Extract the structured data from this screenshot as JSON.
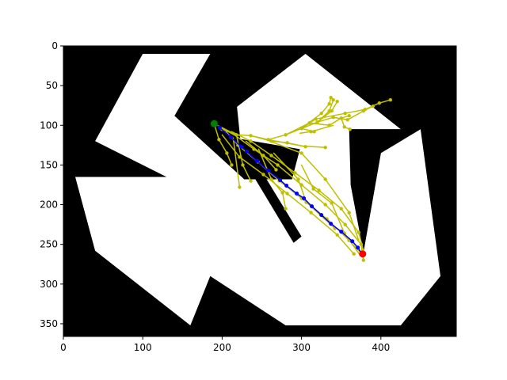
{
  "chart_data": {
    "type": "image_with_paths",
    "title": "",
    "xlabel": "",
    "ylabel": "",
    "xlim": [
      0,
      495
    ],
    "ylim": [
      366,
      0
    ],
    "y_inverted": true,
    "x_ticks": [
      0,
      100,
      200,
      300,
      400
    ],
    "y_ticks": [
      0,
      50,
      100,
      150,
      200,
      250,
      300,
      350
    ],
    "grid": false,
    "legend": "none",
    "colors": {
      "obstacle": "#000000",
      "free_space": "#ffffff",
      "tree": "#bfbf00",
      "path": "#0000ff",
      "start": "#008000",
      "goal": "#ff0000"
    },
    "free_space_polygons": [
      [
        [
          100,
          10
        ],
        [
          185,
          10
        ],
        [
          140,
          88
        ],
        [
          228,
          168
        ],
        [
          288,
          168
        ],
        [
          298,
          130
        ],
        [
          210,
          115
        ],
        [
          195,
          95
        ],
        [
          305,
          10
        ],
        [
          425,
          105
        ],
        [
          362,
          105
        ],
        [
          362,
          175
        ],
        [
          378,
          260
        ],
        [
          400,
          135
        ],
        [
          450,
          105
        ],
        [
          475,
          290
        ],
        [
          425,
          352
        ],
        [
          280,
          352
        ],
        [
          185,
          290
        ],
        [
          160,
          352
        ],
        [
          40,
          258
        ],
        [
          15,
          165
        ],
        [
          130,
          165
        ],
        [
          40,
          120
        ]
      ]
    ],
    "obstacle_polygons": [
      [
        [
          140,
          88
        ],
        [
          215,
          40
        ],
        [
          228,
          168
        ]
      ],
      [
        [
          360,
          105
        ],
        [
          425,
          105
        ],
        [
          400,
          135
        ],
        [
          378,
          260
        ],
        [
          362,
          175
        ]
      ],
      [
        [
          210,
          100
        ],
        [
          245,
          150
        ],
        [
          300,
          240
        ],
        [
          290,
          248
        ],
        [
          225,
          140
        ]
      ]
    ],
    "tree_segments": [
      [
        [
          190,
          98
        ],
        [
          215,
          112
        ]
      ],
      [
        [
          190,
          98
        ],
        [
          196,
          118
        ]
      ],
      [
        [
          196,
          118
        ],
        [
          206,
          135
        ]
      ],
      [
        [
          206,
          135
        ],
        [
          212,
          150
        ]
      ],
      [
        [
          190,
          98
        ],
        [
          200,
          105
        ]
      ],
      [
        [
          200,
          105
        ],
        [
          218,
          112
        ]
      ],
      [
        [
          218,
          112
        ],
        [
          236,
          113
        ]
      ],
      [
        [
          236,
          113
        ],
        [
          258,
          118
        ]
      ],
      [
        [
          196,
          101
        ],
        [
          210,
          108
        ]
      ],
      [
        [
          210,
          108
        ],
        [
          240,
          130
        ]
      ],
      [
        [
          240,
          130
        ],
        [
          270,
          150
        ]
      ],
      [
        [
          270,
          150
        ],
        [
          300,
          175
        ]
      ],
      [
        [
          300,
          175
        ],
        [
          330,
          200
        ]
      ],
      [
        [
          330,
          200
        ],
        [
          355,
          225
        ]
      ],
      [
        [
          355,
          225
        ],
        [
          375,
          250
        ]
      ],
      [
        [
          375,
          250
        ],
        [
          378,
          270
        ]
      ],
      [
        [
          205,
          108
        ],
        [
          220,
          125
        ]
      ],
      [
        [
          220,
          125
        ],
        [
          245,
          146
        ]
      ],
      [
        [
          245,
          146
        ],
        [
          272,
          170
        ]
      ],
      [
        [
          272,
          170
        ],
        [
          300,
          192
        ]
      ],
      [
        [
          300,
          192
        ],
        [
          332,
          218
        ]
      ],
      [
        [
          332,
          218
        ],
        [
          360,
          245
        ]
      ],
      [
        [
          360,
          245
        ],
        [
          376,
          262
        ]
      ],
      [
        [
          212,
          108
        ],
        [
          236,
          120
        ]
      ],
      [
        [
          236,
          120
        ],
        [
          262,
          138
        ]
      ],
      [
        [
          262,
          138
        ],
        [
          292,
          160
        ]
      ],
      [
        [
          292,
          160
        ],
        [
          322,
          182
        ]
      ],
      [
        [
          322,
          182
        ],
        [
          350,
          205
        ]
      ],
      [
        [
          350,
          205
        ],
        [
          372,
          235
        ]
      ],
      [
        [
          372,
          235
        ],
        [
          378,
          258
        ]
      ],
      [
        [
          200,
          112
        ],
        [
          222,
          140
        ]
      ],
      [
        [
          222,
          140
        ],
        [
          252,
          162
        ]
      ],
      [
        [
          252,
          162
        ],
        [
          282,
          186
        ]
      ],
      [
        [
          282,
          186
        ],
        [
          312,
          210
        ]
      ],
      [
        [
          312,
          210
        ],
        [
          345,
          238
        ]
      ],
      [
        [
          345,
          238
        ],
        [
          366,
          262
        ]
      ],
      [
        [
          218,
          112
        ],
        [
          226,
          150
        ]
      ],
      [
        [
          226,
          150
        ],
        [
          236,
          170
        ]
      ],
      [
        [
          214,
          116
        ],
        [
          222,
          178
        ]
      ],
      [
        [
          246,
          130
        ],
        [
          262,
          168
        ]
      ],
      [
        [
          262,
          168
        ],
        [
          276,
          185
        ]
      ],
      [
        [
          276,
          185
        ],
        [
          280,
          205
        ]
      ],
      [
        [
          260,
          120
        ],
        [
          300,
          135
        ]
      ],
      [
        [
          300,
          135
        ],
        [
          330,
          168
        ]
      ],
      [
        [
          330,
          168
        ],
        [
          360,
          210
        ]
      ],
      [
        [
          360,
          210
        ],
        [
          372,
          245
        ]
      ],
      [
        [
          265,
          135
        ],
        [
          296,
          168
        ]
      ],
      [
        [
          296,
          168
        ],
        [
          306,
          197
        ]
      ],
      [
        [
          306,
          197
        ],
        [
          342,
          230
        ]
      ],
      [
        [
          230,
          120
        ],
        [
          252,
          138
        ]
      ],
      [
        [
          252,
          138
        ],
        [
          268,
          156
        ]
      ],
      [
        [
          300,
          150
        ],
        [
          315,
          180
        ]
      ],
      [
        [
          315,
          180
        ],
        [
          338,
          198
        ]
      ],
      [
        [
          338,
          198
        ],
        [
          354,
          236
        ]
      ],
      [
        [
          354,
          236
        ],
        [
          374,
          264
        ]
      ],
      [
        [
          236,
          113
        ],
        [
          262,
          120
        ]
      ],
      [
        [
          262,
          120
        ],
        [
          282,
          122
        ]
      ],
      [
        [
          282,
          122
        ],
        [
          305,
          127
        ]
      ],
      [
        [
          258,
          118
        ],
        [
          300,
          126
        ]
      ],
      [
        [
          300,
          126
        ],
        [
          330,
          128
        ]
      ],
      [
        [
          258,
          118
        ],
        [
          280,
          112
        ]
      ],
      [
        [
          280,
          112
        ],
        [
          300,
          104
        ]
      ],
      [
        [
          300,
          104
        ],
        [
          320,
          96
        ]
      ],
      [
        [
          320,
          96
        ],
        [
          340,
          90
        ]
      ],
      [
        [
          280,
          112
        ],
        [
          310,
          97
        ]
      ],
      [
        [
          310,
          97
        ],
        [
          335,
          100
        ]
      ],
      [
        [
          335,
          100
        ],
        [
          350,
          91
        ]
      ],
      [
        [
          350,
          91
        ],
        [
          360,
          88
        ]
      ],
      [
        [
          320,
          96
        ],
        [
          338,
          82
        ]
      ],
      [
        [
          338,
          82
        ],
        [
          345,
          70
        ]
      ],
      [
        [
          320,
          96
        ],
        [
          335,
          82
        ]
      ],
      [
        [
          335,
          82
        ],
        [
          340,
          68
        ]
      ],
      [
        [
          300,
          104
        ],
        [
          325,
          85
        ]
      ],
      [
        [
          325,
          85
        ],
        [
          335,
          73
        ]
      ],
      [
        [
          335,
          73
        ],
        [
          337,
          65
        ]
      ],
      [
        [
          300,
          104
        ],
        [
          318,
          92
        ]
      ],
      [
        [
          318,
          92
        ],
        [
          355,
          85
        ]
      ],
      [
        [
          355,
          85
        ],
        [
          380,
          80
        ]
      ],
      [
        [
          380,
          80
        ],
        [
          398,
          72
        ]
      ],
      [
        [
          398,
          72
        ],
        [
          412,
          68
        ]
      ],
      [
        [
          340,
          90
        ],
        [
          358,
          93
        ]
      ],
      [
        [
          358,
          93
        ],
        [
          378,
          82
        ]
      ],
      [
        [
          378,
          82
        ],
        [
          390,
          76
        ]
      ],
      [
        [
          350,
          91
        ],
        [
          354,
          102
        ]
      ],
      [
        [
          354,
          102
        ],
        [
          361,
          105
        ]
      ],
      [
        [
          298,
          110
        ],
        [
          312,
          108
        ]
      ],
      [
        [
          312,
          108
        ],
        [
          340,
          100
        ]
      ],
      [
        [
          300,
          104
        ],
        [
          316,
          108
        ]
      ]
    ],
    "tree_nodes": [
      [
        206,
        135
      ],
      [
        212,
        150
      ],
      [
        196,
        118
      ],
      [
        200,
        105
      ],
      [
        218,
        112
      ],
      [
        236,
        113
      ],
      [
        258,
        118
      ],
      [
        240,
        130
      ],
      [
        270,
        150
      ],
      [
        300,
        175
      ],
      [
        330,
        200
      ],
      [
        355,
        225
      ],
      [
        375,
        250
      ],
      [
        378,
        270
      ],
      [
        220,
        125
      ],
      [
        245,
        146
      ],
      [
        272,
        170
      ],
      [
        300,
        192
      ],
      [
        332,
        218
      ],
      [
        360,
        245
      ],
      [
        236,
        120
      ],
      [
        262,
        138
      ],
      [
        292,
        160
      ],
      [
        322,
        182
      ],
      [
        350,
        205
      ],
      [
        372,
        235
      ],
      [
        222,
        140
      ],
      [
        252,
        162
      ],
      [
        282,
        186
      ],
      [
        312,
        210
      ],
      [
        345,
        238
      ],
      [
        366,
        262
      ],
      [
        226,
        150
      ],
      [
        236,
        170
      ],
      [
        222,
        178
      ],
      [
        262,
        168
      ],
      [
        276,
        185
      ],
      [
        280,
        205
      ],
      [
        300,
        135
      ],
      [
        330,
        168
      ],
      [
        360,
        210
      ],
      [
        296,
        168
      ],
      [
        306,
        197
      ],
      [
        342,
        230
      ],
      [
        252,
        138
      ],
      [
        268,
        156
      ],
      [
        315,
        180
      ],
      [
        338,
        198
      ],
      [
        354,
        236
      ],
      [
        262,
        120
      ],
      [
        282,
        122
      ],
      [
        305,
        127
      ],
      [
        330,
        128
      ],
      [
        280,
        112
      ],
      [
        300,
        104
      ],
      [
        320,
        96
      ],
      [
        340,
        90
      ],
      [
        310,
        97
      ],
      [
        335,
        100
      ],
      [
        350,
        91
      ],
      [
        360,
        88
      ],
      [
        338,
        82
      ],
      [
        345,
        70
      ],
      [
        335,
        82
      ],
      [
        340,
        68
      ],
      [
        325,
        85
      ],
      [
        335,
        73
      ],
      [
        337,
        65
      ],
      [
        318,
        92
      ],
      [
        355,
        85
      ],
      [
        380,
        80
      ],
      [
        398,
        72
      ],
      [
        412,
        68
      ],
      [
        358,
        93
      ],
      [
        378,
        82
      ],
      [
        390,
        76
      ],
      [
        354,
        102
      ],
      [
        361,
        105
      ],
      [
        312,
        108
      ],
      [
        316,
        108
      ]
    ],
    "path_points": [
      [
        190,
        98
      ],
      [
        197,
        103
      ],
      [
        211,
        115
      ],
      [
        224,
        127
      ],
      [
        231,
        133
      ],
      [
        244,
        145
      ],
      [
        258,
        157
      ],
      [
        273,
        169
      ],
      [
        281,
        176
      ],
      [
        294,
        186
      ],
      [
        303,
        192
      ],
      [
        313,
        202
      ],
      [
        325,
        213
      ],
      [
        337,
        224
      ],
      [
        350,
        234
      ],
      [
        364,
        246
      ],
      [
        371,
        254
      ],
      [
        376,
        262
      ]
    ],
    "start": [
      190,
      98
    ],
    "goal": [
      377,
      262
    ]
  }
}
